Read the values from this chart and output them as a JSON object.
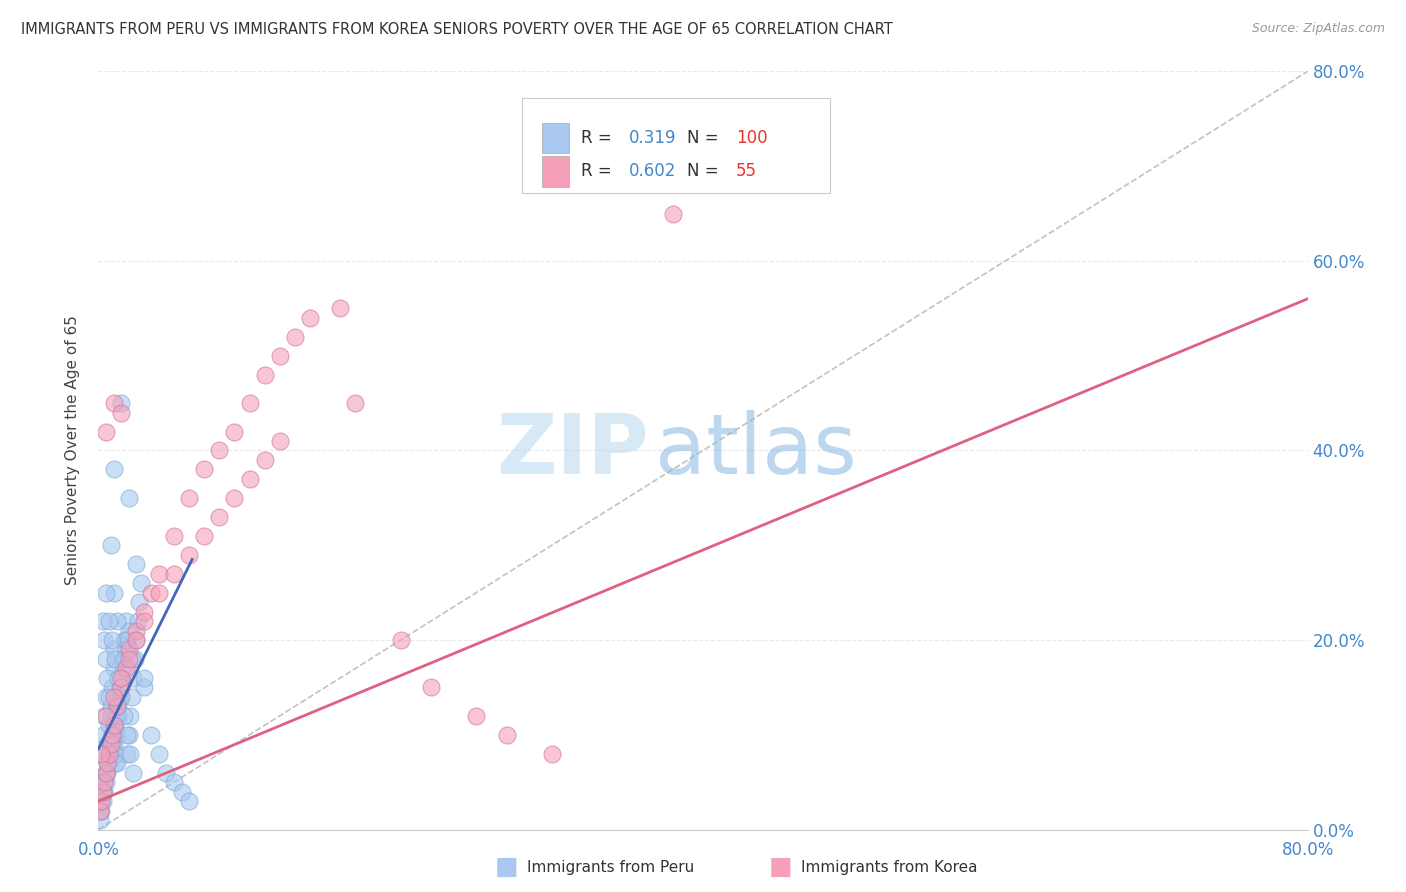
{
  "title": "IMMIGRANTS FROM PERU VS IMMIGRANTS FROM KOREA SENIORS POVERTY OVER THE AGE OF 65 CORRELATION CHART",
  "source": "Source: ZipAtlas.com",
  "ylabel": "Seniors Poverty Over the Age of 65",
  "watermark_zip": "ZIP",
  "watermark_atlas": "atlas",
  "xlim": [
    0.0,
    0.8
  ],
  "ylim": [
    0.0,
    0.8
  ],
  "peru_R": 0.319,
  "peru_N": 100,
  "korea_R": 0.602,
  "korea_N": 55,
  "peru_color": "#a8c8f0",
  "peru_edge_color": "#7aaad0",
  "korea_color": "#f5a0b8",
  "korea_edge_color": "#d070a0",
  "peru_line_color": "#4466bb",
  "korea_line_color": "#e06080",
  "ref_line_color": "#bbbbbb",
  "background_color": "#ffffff",
  "grid_color": "#e8e8e8",
  "legend_R_color": "#4488cc",
  "legend_N_color": "#ee3333",
  "peru_line_x": [
    0.0,
    0.062
  ],
  "peru_line_y": [
    0.085,
    0.285
  ],
  "korea_line_x": [
    0.0,
    0.8
  ],
  "korea_line_y": [
    0.03,
    0.56
  ],
  "peru_scatter_x": [
    0.001,
    0.002,
    0.003,
    0.004,
    0.005,
    0.005,
    0.006,
    0.007,
    0.008,
    0.009,
    0.01,
    0.01,
    0.011,
    0.012,
    0.013,
    0.014,
    0.015,
    0.016,
    0.017,
    0.018,
    0.019,
    0.02,
    0.021,
    0.022,
    0.023,
    0.024,
    0.025,
    0.026,
    0.027,
    0.028,
    0.001,
    0.002,
    0.003,
    0.004,
    0.005,
    0.006,
    0.007,
    0.008,
    0.009,
    0.01,
    0.011,
    0.012,
    0.013,
    0.014,
    0.015,
    0.016,
    0.017,
    0.018,
    0.019,
    0.02,
    0.001,
    0.002,
    0.003,
    0.004,
    0.005,
    0.006,
    0.007,
    0.008,
    0.009,
    0.01,
    0.011,
    0.012,
    0.013,
    0.03,
    0.035,
    0.04,
    0.045,
    0.05,
    0.055,
    0.06,
    0.008,
    0.01,
    0.015,
    0.02,
    0.025,
    0.01,
    0.012,
    0.018,
    0.022,
    0.03,
    0.003,
    0.004,
    0.005,
    0.006,
    0.007,
    0.008,
    0.009,
    0.01,
    0.011,
    0.012,
    0.005,
    0.007,
    0.009,
    0.011,
    0.013,
    0.015,
    0.017,
    0.019,
    0.021,
    0.023
  ],
  "peru_scatter_y": [
    0.05,
    0.08,
    0.1,
    0.12,
    0.14,
    0.06,
    0.09,
    0.11,
    0.13,
    0.15,
    0.17,
    0.19,
    0.07,
    0.1,
    0.12,
    0.14,
    0.16,
    0.18,
    0.2,
    0.22,
    0.08,
    0.1,
    0.12,
    0.14,
    0.16,
    0.18,
    0.2,
    0.22,
    0.24,
    0.26,
    0.02,
    0.03,
    0.04,
    0.05,
    0.06,
    0.07,
    0.08,
    0.09,
    0.1,
    0.11,
    0.12,
    0.13,
    0.14,
    0.15,
    0.16,
    0.17,
    0.18,
    0.19,
    0.2,
    0.21,
    0.01,
    0.02,
    0.03,
    0.04,
    0.05,
    0.06,
    0.07,
    0.08,
    0.09,
    0.1,
    0.11,
    0.12,
    0.13,
    0.15,
    0.1,
    0.08,
    0.06,
    0.05,
    0.04,
    0.03,
    0.3,
    0.38,
    0.45,
    0.35,
    0.28,
    0.25,
    0.22,
    0.2,
    0.18,
    0.16,
    0.22,
    0.2,
    0.18,
    0.16,
    0.14,
    0.12,
    0.1,
    0.09,
    0.08,
    0.07,
    0.25,
    0.22,
    0.2,
    0.18,
    0.16,
    0.14,
    0.12,
    0.1,
    0.08,
    0.06
  ],
  "korea_scatter_x": [
    0.001,
    0.002,
    0.003,
    0.004,
    0.005,
    0.006,
    0.007,
    0.008,
    0.009,
    0.01,
    0.012,
    0.015,
    0.018,
    0.02,
    0.025,
    0.03,
    0.035,
    0.04,
    0.05,
    0.06,
    0.07,
    0.08,
    0.09,
    0.1,
    0.11,
    0.12,
    0.13,
    0.14,
    0.16,
    0.17,
    0.002,
    0.005,
    0.01,
    0.015,
    0.02,
    0.025,
    0.03,
    0.04,
    0.05,
    0.06,
    0.07,
    0.08,
    0.09,
    0.1,
    0.11,
    0.12,
    0.2,
    0.22,
    0.25,
    0.27,
    0.3,
    0.38,
    0.005,
    0.01,
    0.015
  ],
  "korea_scatter_y": [
    0.02,
    0.03,
    0.04,
    0.05,
    0.06,
    0.07,
    0.08,
    0.09,
    0.1,
    0.11,
    0.13,
    0.15,
    0.17,
    0.19,
    0.21,
    0.23,
    0.25,
    0.27,
    0.31,
    0.35,
    0.38,
    0.4,
    0.42,
    0.45,
    0.48,
    0.5,
    0.52,
    0.54,
    0.55,
    0.45,
    0.08,
    0.12,
    0.14,
    0.16,
    0.18,
    0.2,
    0.22,
    0.25,
    0.27,
    0.29,
    0.31,
    0.33,
    0.35,
    0.37,
    0.39,
    0.41,
    0.2,
    0.15,
    0.12,
    0.1,
    0.08,
    0.65,
    0.42,
    0.45,
    0.44
  ]
}
